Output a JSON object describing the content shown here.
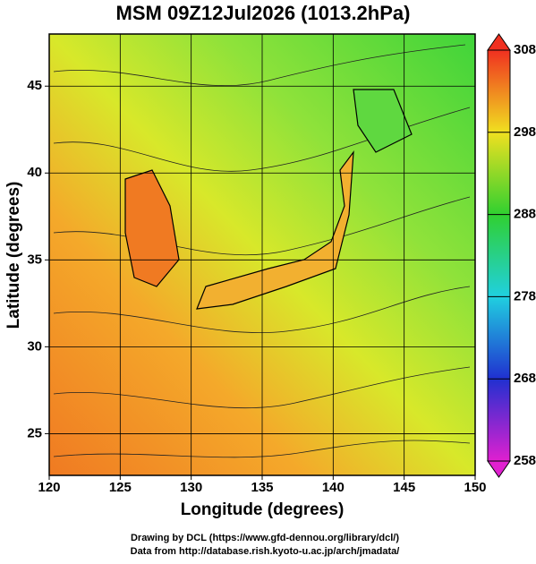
{
  "title": "MSM 09Z12Jul2026 (1013.2hPa)",
  "x_axis": {
    "label": "Longitude (degrees)",
    "lim": [
      120,
      150
    ],
    "ticks": [
      120,
      125,
      130,
      135,
      140,
      145,
      150
    ]
  },
  "y_axis": {
    "label": "Latitude  (degrees)",
    "lim": [
      22.6,
      48
    ],
    "ticks": [
      25,
      30,
      35,
      40,
      45
    ]
  },
  "colorbar": {
    "lim": [
      258,
      308
    ],
    "ticks": [
      258,
      268,
      278,
      288,
      298,
      308
    ]
  },
  "footer": [
    "Drawing by DCL (https://www.gfd-dennou.org/library/dcl/)",
    "Data from http://database.rish.kyoto-u.ac.jp/arch/jmadata/"
  ]
}
